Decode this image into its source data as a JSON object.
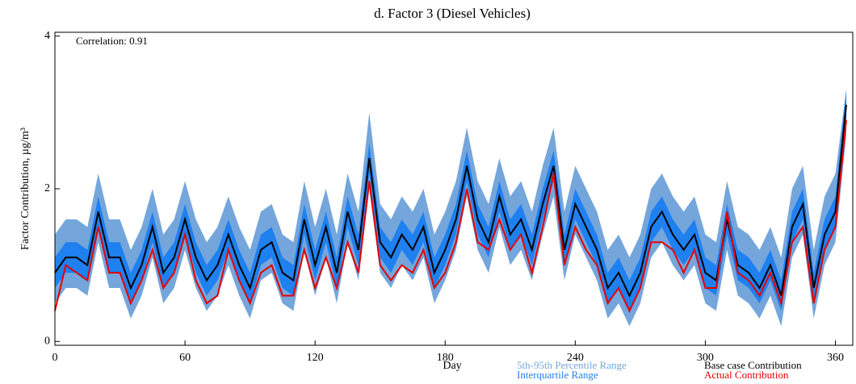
{
  "chart_data": {
    "type": "line",
    "title": "d.  Factor 3 (Diesel Vehicles)",
    "annotation": "Correlation: 0.91",
    "x_label": "Day",
    "y_label": "Factor Contribution,  µg/m³",
    "x": [
      0,
      5,
      10,
      15,
      20,
      25,
      30,
      35,
      40,
      45,
      50,
      55,
      60,
      65,
      70,
      75,
      80,
      85,
      90,
      95,
      100,
      105,
      110,
      115,
      120,
      125,
      130,
      135,
      140,
      145,
      150,
      155,
      160,
      165,
      170,
      175,
      180,
      185,
      190,
      195,
      200,
      205,
      210,
      215,
      220,
      225,
      230,
      235,
      240,
      245,
      250,
      255,
      260,
      265,
      270,
      275,
      280,
      285,
      290,
      295,
      300,
      305,
      310,
      315,
      320,
      325,
      330,
      335,
      340,
      345,
      350,
      355,
      360,
      365
    ],
    "bands": [
      {
        "name": "5th-95th Percentile Range",
        "color": "#74a6dc",
        "lower": [
          0.5,
          0.7,
          0.7,
          0.6,
          1.3,
          0.7,
          0.7,
          0.3,
          0.6,
          1.1,
          0.5,
          0.7,
          1.2,
          0.7,
          0.4,
          0.6,
          1.0,
          0.6,
          0.3,
          0.8,
          0.9,
          0.5,
          0.4,
          1.2,
          0.6,
          1.1,
          0.5,
          1.3,
          0.8,
          2.0,
          0.9,
          0.7,
          1.0,
          0.8,
          1.1,
          0.5,
          0.8,
          1.2,
          1.9,
          1.2,
          0.9,
          1.5,
          1.0,
          1.2,
          0.8,
          1.4,
          1.9,
          0.8,
          1.4,
          1.1,
          0.8,
          0.3,
          0.5,
          0.2,
          0.5,
          1.1,
          1.3,
          1.0,
          0.8,
          1.0,
          0.5,
          0.4,
          1.2,
          0.6,
          0.5,
          0.3,
          0.6,
          0.2,
          1.1,
          1.4,
          0.3,
          1.0,
          1.3,
          2.7
        ],
        "upper": [
          1.4,
          1.6,
          1.6,
          1.5,
          2.2,
          1.6,
          1.6,
          1.2,
          1.5,
          2.0,
          1.4,
          1.6,
          2.1,
          1.6,
          1.3,
          1.5,
          1.9,
          1.5,
          1.2,
          1.7,
          1.8,
          1.4,
          1.3,
          2.1,
          1.5,
          2.0,
          1.4,
          2.2,
          1.7,
          3.0,
          1.8,
          1.6,
          1.9,
          1.7,
          2.0,
          1.4,
          1.7,
          2.1,
          2.8,
          2.1,
          1.8,
          2.4,
          1.9,
          2.1,
          1.7,
          2.3,
          2.8,
          1.7,
          2.3,
          2.0,
          1.7,
          1.2,
          1.4,
          1.1,
          1.4,
          2.0,
          2.2,
          1.9,
          1.7,
          1.9,
          1.4,
          1.3,
          2.1,
          1.5,
          1.4,
          1.2,
          1.5,
          1.1,
          2.0,
          2.3,
          1.2,
          1.9,
          2.2,
          3.3
        ]
      },
      {
        "name": "Interquartile Range",
        "color": "#1f80f0",
        "lower": [
          0.7,
          0.9,
          0.9,
          0.8,
          1.5,
          0.9,
          0.9,
          0.5,
          0.8,
          1.3,
          0.7,
          0.9,
          1.4,
          0.9,
          0.6,
          0.8,
          1.2,
          0.8,
          0.5,
          1.0,
          1.1,
          0.7,
          0.6,
          1.4,
          0.8,
          1.3,
          0.7,
          1.5,
          1.0,
          2.2,
          1.1,
          0.9,
          1.2,
          1.0,
          1.3,
          0.7,
          1.0,
          1.4,
          2.1,
          1.4,
          1.1,
          1.7,
          1.2,
          1.4,
          1.0,
          1.6,
          2.1,
          1.0,
          1.6,
          1.3,
          1.0,
          0.5,
          0.7,
          0.4,
          0.7,
          1.3,
          1.5,
          1.2,
          1.0,
          1.2,
          0.7,
          0.6,
          1.4,
          0.8,
          0.7,
          0.5,
          0.8,
          0.4,
          1.3,
          1.6,
          0.5,
          1.2,
          1.5,
          2.9
        ],
        "upper": [
          1.1,
          1.3,
          1.3,
          1.2,
          1.9,
          1.3,
          1.3,
          0.9,
          1.2,
          1.7,
          1.1,
          1.3,
          1.8,
          1.3,
          1.0,
          1.2,
          1.6,
          1.2,
          0.9,
          1.4,
          1.5,
          1.1,
          1.0,
          1.8,
          1.2,
          1.7,
          1.1,
          1.9,
          1.4,
          2.6,
          1.5,
          1.3,
          1.6,
          1.4,
          1.7,
          1.1,
          1.4,
          1.8,
          2.5,
          1.8,
          1.5,
          2.1,
          1.6,
          1.8,
          1.4,
          2.0,
          2.5,
          1.4,
          2.0,
          1.7,
          1.4,
          0.9,
          1.1,
          0.8,
          1.1,
          1.7,
          1.9,
          1.6,
          1.4,
          1.6,
          1.1,
          1.0,
          1.8,
          1.2,
          1.1,
          0.9,
          1.2,
          0.8,
          1.7,
          2.0,
          0.9,
          1.6,
          1.9,
          3.3
        ]
      }
    ],
    "series": [
      {
        "name": "Base case Contribution",
        "color": "#000000",
        "values": [
          0.9,
          1.1,
          1.1,
          1.0,
          1.7,
          1.1,
          1.1,
          0.7,
          1.0,
          1.5,
          0.9,
          1.1,
          1.6,
          1.1,
          0.8,
          1.0,
          1.4,
          1.0,
          0.7,
          1.2,
          1.3,
          0.9,
          0.8,
          1.6,
          1.0,
          1.5,
          0.9,
          1.7,
          1.2,
          2.4,
          1.3,
          1.1,
          1.4,
          1.2,
          1.5,
          0.9,
          1.2,
          1.6,
          2.3,
          1.6,
          1.3,
          1.9,
          1.4,
          1.6,
          1.2,
          1.8,
          2.3,
          1.2,
          1.8,
          1.5,
          1.2,
          0.7,
          0.9,
          0.6,
          0.9,
          1.5,
          1.7,
          1.4,
          1.2,
          1.4,
          0.9,
          0.8,
          1.6,
          1.0,
          0.9,
          0.7,
          1.0,
          0.6,
          1.5,
          1.8,
          0.7,
          1.4,
          1.7,
          3.1
        ]
      },
      {
        "name": "Actual Contribution",
        "color": "#e60000",
        "values": [
          0.4,
          1.0,
          0.9,
          0.8,
          1.5,
          0.9,
          0.9,
          0.5,
          0.8,
          1.2,
          0.7,
          0.9,
          1.4,
          0.8,
          0.5,
          0.6,
          1.2,
          0.8,
          0.5,
          0.9,
          1.0,
          0.6,
          0.6,
          1.2,
          0.7,
          1.1,
          0.7,
          1.3,
          0.9,
          2.1,
          1.0,
          0.8,
          1.0,
          0.9,
          1.2,
          0.7,
          0.9,
          1.3,
          2.0,
          1.3,
          1.2,
          1.6,
          1.2,
          1.4,
          0.9,
          1.5,
          2.2,
          1.0,
          1.5,
          1.2,
          1.0,
          0.5,
          0.7,
          0.4,
          0.7,
          1.3,
          1.3,
          1.2,
          0.9,
          1.2,
          0.7,
          0.7,
          1.7,
          0.9,
          0.8,
          0.6,
          0.9,
          0.5,
          1.3,
          1.5,
          0.5,
          1.2,
          1.5,
          2.9
        ]
      }
    ],
    "xlim": [
      0,
      368
    ],
    "xticks": [
      0,
      60,
      120,
      180,
      240,
      300,
      360
    ],
    "ylim": [
      -0.05,
      4.05
    ],
    "yticks": [
      0,
      2,
      4
    ]
  }
}
